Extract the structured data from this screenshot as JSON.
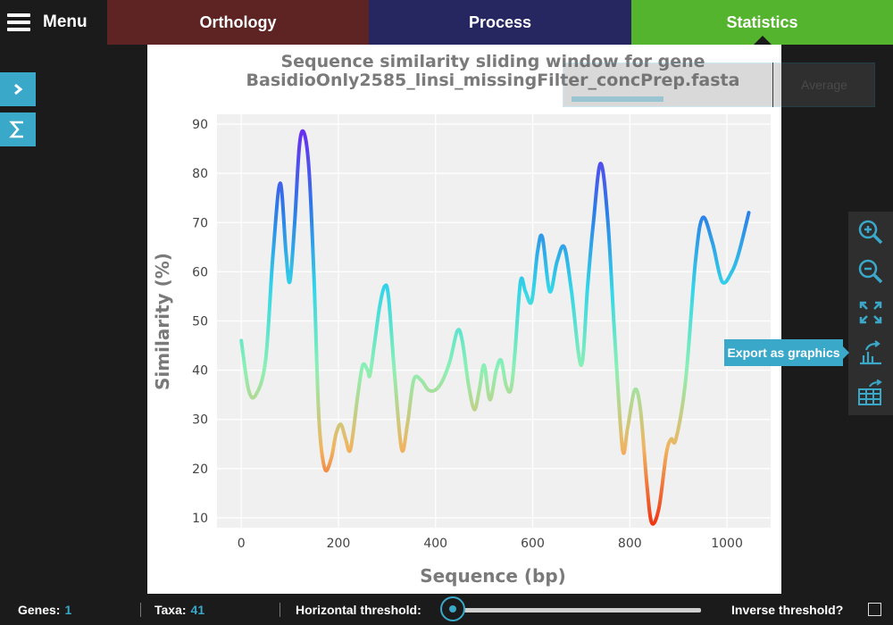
{
  "menu": {
    "label": "Menu"
  },
  "tabs": [
    {
      "label": "Orthology"
    },
    {
      "label": "Process"
    },
    {
      "label": "Statistics"
    }
  ],
  "overlay": {
    "average_label": "Average"
  },
  "tooltip": {
    "label": "Export as graphics"
  },
  "status": {
    "genes_label": "Genes:",
    "genes_value": "1",
    "taxa_label": "Taxa:",
    "taxa_value": "41",
    "threshold_label": "Horizontal threshold:",
    "threshold_value": 0,
    "inverse_label": "Inverse threshold?"
  },
  "colors": {
    "accent": "#3aa8c9"
  },
  "chart_data": {
    "type": "line",
    "title": "Sequence similarity sliding window for gene",
    "subtitle": "BasidioOnly2585_linsi_missingFilter_concPrep.fasta",
    "xlabel": "Sequence (bp)",
    "ylabel": "Similarity (%)",
    "xlim": [
      -50,
      1090
    ],
    "ylim": [
      8,
      92
    ],
    "xticks": [
      0,
      200,
      400,
      600,
      800,
      1000
    ],
    "yticks": [
      10,
      20,
      30,
      40,
      50,
      60,
      70,
      80,
      90
    ],
    "grid": true,
    "series": [
      {
        "name": "similarity",
        "x": [
          0,
          15,
          30,
          50,
          65,
          80,
          92,
          100,
          110,
          120,
          130,
          140,
          150,
          160,
          172,
          185,
          195,
          205,
          215,
          225,
          240,
          250,
          260,
          265,
          275,
          285,
          295,
          303,
          315,
          330,
          342,
          355,
          370,
          385,
          400,
          415,
          430,
          445,
          455,
          468,
          480,
          490,
          500,
          512,
          525,
          535,
          545,
          555,
          563,
          575,
          585,
          598,
          610,
          620,
          635,
          650,
          665,
          680,
          700,
          713,
          725,
          740,
          755,
          770,
          785,
          795,
          810,
          822,
          835,
          845,
          860,
          875,
          885,
          895,
          915,
          935,
          950,
          970,
          990,
          1010,
          1025,
          1045
        ],
        "y": [
          46,
          36,
          35,
          42,
          63,
          78,
          64,
          58,
          70,
          86,
          88,
          80,
          58,
          30,
          20,
          22,
          27,
          29,
          26,
          24,
          35,
          41,
          40,
          39,
          46,
          53,
          57,
          55,
          40,
          24,
          29,
          38,
          38,
          36,
          36,
          38,
          42,
          48,
          46,
          37,
          32,
          36,
          41,
          34,
          40,
          42,
          37,
          36,
          43,
          58,
          56,
          54,
          64,
          67,
          56,
          62,
          65,
          56,
          41,
          57,
          70,
          82,
          70,
          45,
          24,
          28,
          36,
          32,
          17,
          9,
          12,
          23,
          26,
          26,
          38,
          62,
          71,
          66,
          58,
          60,
          64,
          72
        ]
      }
    ]
  }
}
